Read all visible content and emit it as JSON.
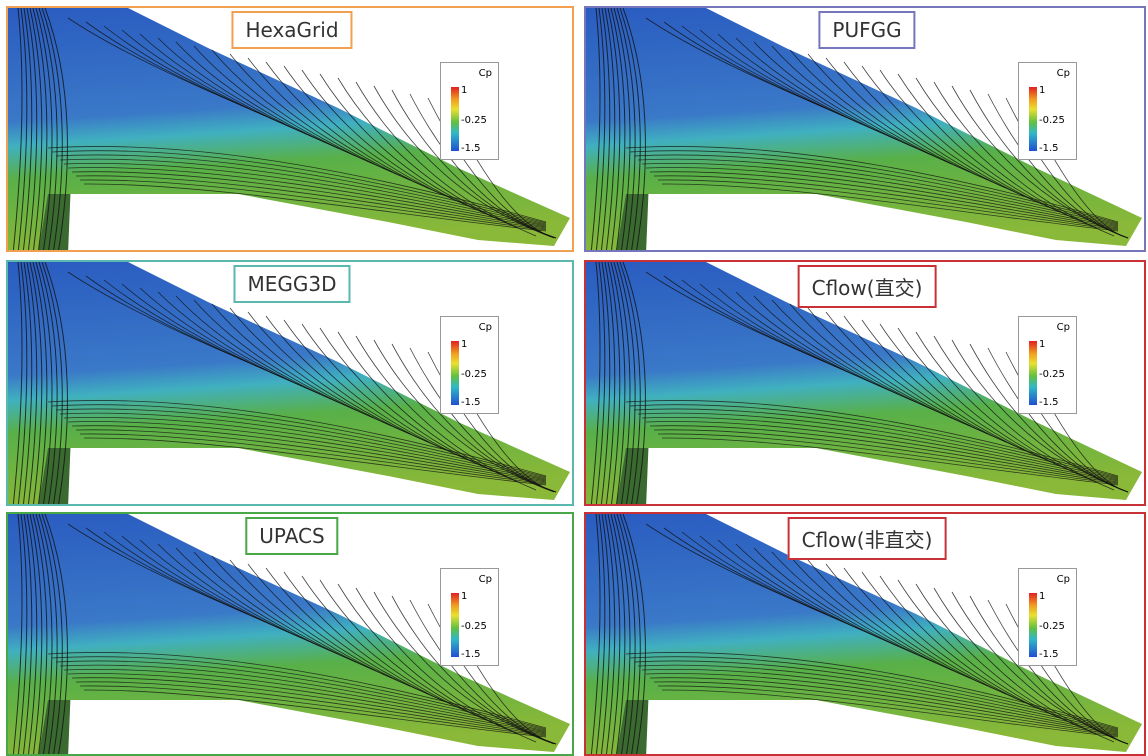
{
  "panels": [
    {
      "label": "HexaGrid",
      "border_color": "#f0a050",
      "legend": {
        "title": "Cp",
        "labels": [
          "1",
          "-0.25",
          "-1.5"
        ]
      }
    },
    {
      "label": "PUFGG",
      "border_color": "#7676bc",
      "legend": {
        "title": "Cp",
        "labels": [
          "1",
          "-0.25",
          "-1.5"
        ]
      }
    },
    {
      "label": "MEGG3D",
      "border_color": "#5ab8ae",
      "legend": {
        "title": "Cp",
        "labels": [
          "1",
          "-0.25",
          "-1.5"
        ]
      }
    },
    {
      "label": "Cflow(直交)",
      "border_color": "#c83236",
      "legend": {
        "title": "Cp",
        "labels": [
          "1",
          "-0.25",
          "-1.5"
        ]
      }
    },
    {
      "label": "UPACS",
      "border_color": "#48a848",
      "legend": {
        "title": "Cp",
        "labels": [
          "1",
          "-0.25",
          "-1.5"
        ]
      }
    },
    {
      "label": "Cflow(非直交)",
      "border_color": "#c83236",
      "legend": {
        "title": "Cp",
        "labels": [
          "1",
          "-0.25",
          "-1.5"
        ]
      }
    }
  ]
}
